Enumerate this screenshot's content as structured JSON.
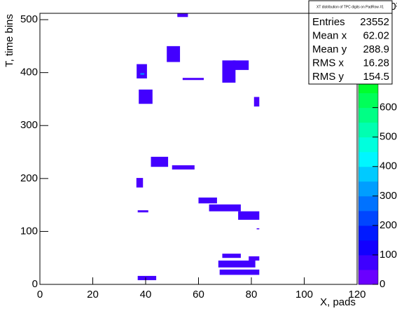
{
  "chart_data": {
    "type": "heatmap",
    "x_label": "X, pads",
    "y_label": "T, time bins",
    "xlim": [
      0,
      120
    ],
    "xticks": [
      0,
      20,
      40,
      60,
      80,
      100,
      120
    ],
    "ylim": [
      0,
      512
    ],
    "yticks": [
      0,
      100,
      200,
      300,
      400,
      500
    ],
    "zlim": [
      0,
      920
    ],
    "zticks": [
      0,
      100,
      200,
      300,
      400,
      500,
      600
    ],
    "z_exponent_label": "10³",
    "cells": [
      {
        "x": [
          52,
          56
        ],
        "y": [
          505,
          512
        ],
        "z": 60
      },
      {
        "x": [
          48,
          53
        ],
        "y": [
          420,
          450
        ],
        "z": 70
      },
      {
        "x": [
          36.6,
          40.5
        ],
        "y": [
          389,
          416
        ],
        "z": 70
      },
      {
        "x": [
          38,
          39.5
        ],
        "y": [
          396,
          399
        ],
        "z": 300
      },
      {
        "x": [
          54,
          62
        ],
        "y": [
          386,
          390
        ],
        "z": 60
      },
      {
        "x": [
          69,
          74
        ],
        "y": [
          381,
          423
        ],
        "z": 70
      },
      {
        "x": [
          73,
          79
        ],
        "y": [
          405,
          423
        ],
        "z": 70
      },
      {
        "x": [
          37.4,
          42.6
        ],
        "y": [
          341,
          368
        ],
        "z": 70
      },
      {
        "x": [
          81,
          83
        ],
        "y": [
          336,
          354
        ],
        "z": 60
      },
      {
        "x": [
          42,
          48.5
        ],
        "y": [
          222,
          241
        ],
        "z": 70
      },
      {
        "x": [
          50,
          58.5
        ],
        "y": [
          217,
          225
        ],
        "z": 60
      },
      {
        "x": [
          36.5,
          39
        ],
        "y": [
          183,
          201
        ],
        "z": 60
      },
      {
        "x": [
          60,
          67
        ],
        "y": [
          153,
          164
        ],
        "z": 70
      },
      {
        "x": [
          64,
          76
        ],
        "y": [
          138,
          151
        ],
        "z": 70
      },
      {
        "x": [
          75,
          83
        ],
        "y": [
          122,
          138
        ],
        "z": 70
      },
      {
        "x": [
          37,
          41
        ],
        "y": [
          136,
          140
        ],
        "z": 60
      },
      {
        "x": [
          82,
          83
        ],
        "y": [
          104,
          106
        ],
        "z": 60
      },
      {
        "x": [
          69,
          76
        ],
        "y": [
          50,
          58
        ],
        "z": 70
      },
      {
        "x": [
          79,
          83
        ],
        "y": [
          45,
          53
        ],
        "z": 60
      },
      {
        "x": [
          67.5,
          81.5
        ],
        "y": [
          32,
          45
        ],
        "z": 70
      },
      {
        "x": [
          68,
          83
        ],
        "y": [
          18,
          28
        ],
        "z": 70
      },
      {
        "x": [
          37,
          44
        ],
        "y": [
          8,
          16
        ],
        "z": 70
      }
    ],
    "stats": {
      "title": "XT distribution of TPC digits on PadRow #1",
      "rows": [
        [
          "Entries",
          "23552"
        ],
        [
          "Mean x",
          "62.02"
        ],
        [
          "Mean y",
          "288.9"
        ],
        [
          "RMS x",
          "16.28"
        ],
        [
          "RMS y",
          "154.5"
        ]
      ]
    }
  }
}
